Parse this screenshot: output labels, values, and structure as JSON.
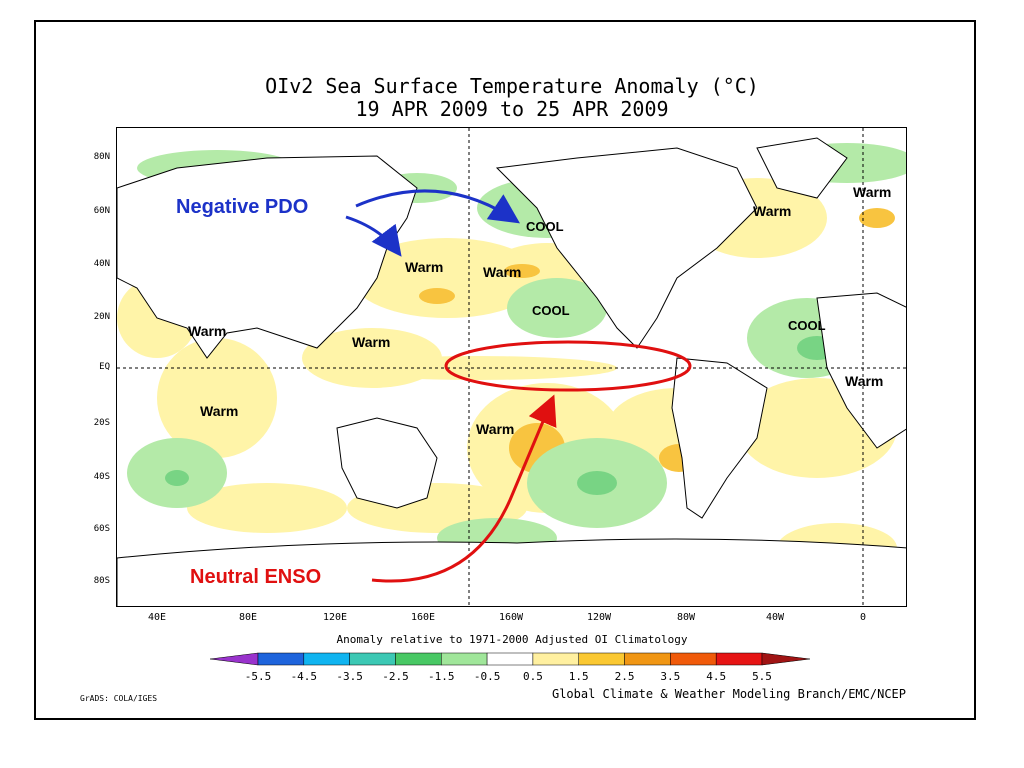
{
  "map": {
    "title_line1": "OIv2 Sea Surface Temperature Anomaly (°C)",
    "title_line2": "19 APR 2009 to 25 APR 2009",
    "lat_labels": [
      "80N",
      "60N",
      "40N",
      "20N",
      "EQ",
      "20S",
      "40S",
      "60S",
      "80S"
    ],
    "lon_labels": [
      "40E",
      "80E",
      "120E",
      "160E",
      "160W",
      "120W",
      "80W",
      "40W",
      "0"
    ],
    "colorbar_title": "Anomaly relative to 1971-2000 Adjusted OI Climatology",
    "colorbar_ticks": [
      "-5.5",
      "-4.5",
      "-3.5",
      "-2.5",
      "-1.5",
      "-0.5",
      "0.5",
      "1.5",
      "2.5",
      "3.5",
      "4.5",
      "5.5"
    ],
    "colorbar_colors": [
      "#9933cc",
      "#1e64dc",
      "#10b4f0",
      "#3cc8b4",
      "#48c864",
      "#a0e69a",
      "#ffffff",
      "#fff0a0",
      "#fac832",
      "#f09614",
      "#f05a0a",
      "#e61414",
      "#a01414"
    ],
    "credit": "Global Climate & Weather Modeling Branch/EMC/NCEP",
    "software": "GrADS: COLA/IGES"
  },
  "annotations": {
    "negative_pdo": "Negative PDO",
    "neutral_enso": "Neutral ENSO",
    "warm": "Warm",
    "cool": "COOL"
  },
  "colors": {
    "pdo_arrow": "#1c32c8",
    "enso_arrow": "#e01010",
    "warm_shade": "#fff4a8",
    "warm_strong": "#f8c440",
    "cool_shade": "#b4eaa8",
    "cool_strong": "#78d484"
  }
}
